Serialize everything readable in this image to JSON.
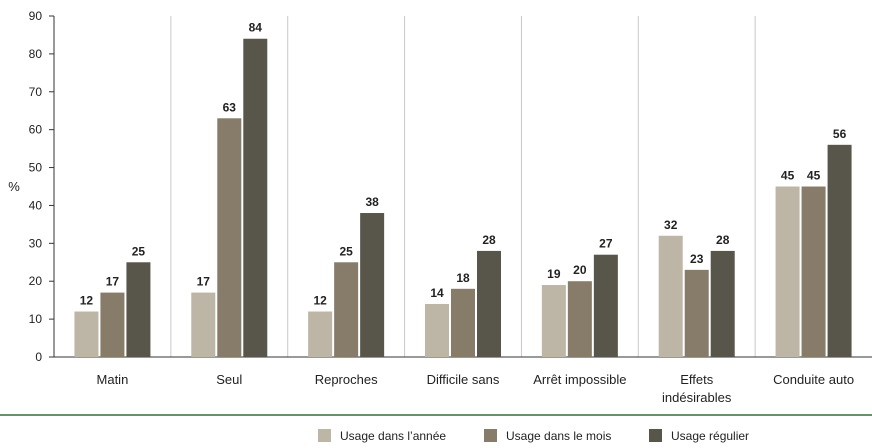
{
  "chart_data": {
    "type": "bar",
    "ylabel": "%",
    "ylim": [
      0,
      90
    ],
    "yticks": [
      0,
      10,
      20,
      30,
      40,
      50,
      60,
      70,
      80,
      90
    ],
    "categories": [
      [
        "Matin"
      ],
      [
        "Seul"
      ],
      [
        "Reproches"
      ],
      [
        "Difficile sans"
      ],
      [
        "Arrêt impossible"
      ],
      [
        "Effets",
        "indésirables"
      ],
      [
        "Conduite auto"
      ]
    ],
    "series": [
      {
        "name": "Usage dans l’année",
        "color": "#bdb5a6",
        "values": [
          12,
          17,
          12,
          14,
          19,
          32,
          45
        ]
      },
      {
        "name": "Usage dans le mois",
        "color": "#877b69",
        "values": [
          17,
          63,
          25,
          18,
          20,
          23,
          45
        ]
      },
      {
        "name": "Usage régulier",
        "color": "#58564a",
        "values": [
          25,
          84,
          38,
          28,
          27,
          28,
          56
        ]
      }
    ],
    "data_labels": [
      [
        "12",
        "17",
        "12",
        "14",
        "19",
        "32",
        "45"
      ],
      [
        "17",
        "63",
        "25",
        "18",
        "20",
        "23",
        "45"
      ],
      [
        "25",
        "84",
        "38",
        "28",
        "27",
        "28",
        "56"
      ]
    ],
    "grid": "vertical separators",
    "legend_position": "bottom"
  },
  "colors": {
    "divider": "#6a8f6d",
    "separator": "#c8c8c8",
    "axis": "#333333"
  }
}
